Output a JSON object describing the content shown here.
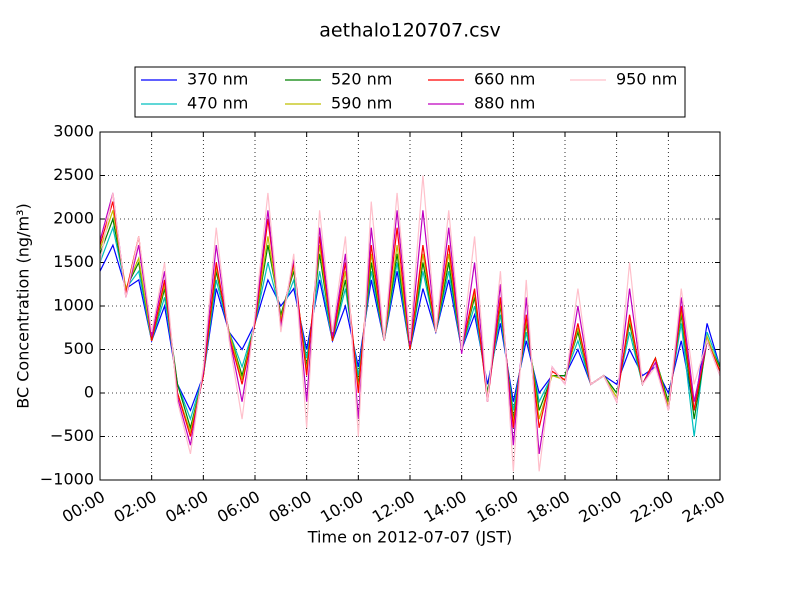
{
  "chart_data": {
    "type": "line",
    "title": "aethalo120707.csv",
    "x_label": "Time on 2012-07-07 (JST)",
    "y_label": "BC Concentration (ng/m³)",
    "x": [
      0,
      0.5,
      1,
      1.5,
      2,
      2.5,
      3,
      3.5,
      4,
      4.5,
      5,
      5.5,
      6,
      6.5,
      7,
      7.5,
      8,
      8.5,
      9,
      9.5,
      10,
      10.5,
      11,
      11.5,
      12,
      12.5,
      13,
      13.5,
      14,
      14.5,
      15,
      15.5,
      16,
      16.5,
      17,
      17.5,
      18,
      18.5,
      19,
      19.5,
      20,
      20.5,
      21,
      21.5,
      22,
      22.5,
      23,
      23.5,
      24
    ],
    "xlim": [
      0,
      24
    ],
    "xticks": [
      {
        "value": 0,
        "label": "00:00"
      },
      {
        "value": 2,
        "label": "02:00"
      },
      {
        "value": 4,
        "label": "04:00"
      },
      {
        "value": 6,
        "label": "06:00"
      },
      {
        "value": 8,
        "label": "08:00"
      },
      {
        "value": 10,
        "label": "10:00"
      },
      {
        "value": 12,
        "label": "12:00"
      },
      {
        "value": 14,
        "label": "14:00"
      },
      {
        "value": 16,
        "label": "16:00"
      },
      {
        "value": 18,
        "label": "18:00"
      },
      {
        "value": 20,
        "label": "20:00"
      },
      {
        "value": 22,
        "label": "22:00"
      },
      {
        "value": 24,
        "label": "24:00"
      }
    ],
    "ylim": [
      -1000,
      3000
    ],
    "yticks": [
      {
        "value": -1000,
        "label": "−1000"
      },
      {
        "value": -500,
        "label": "−500"
      },
      0,
      500,
      1000,
      1500,
      2000,
      2500,
      3000
    ],
    "grid": true,
    "legend": "top",
    "series": [
      {
        "name": "370 nm",
        "color": "#0000ff",
        "values": [
          1400,
          1700,
          1200,
          1300,
          600,
          1000,
          100,
          -200,
          200,
          1200,
          700,
          500,
          800,
          1300,
          1000,
          1200,
          500,
          1300,
          600,
          1000,
          300,
          1300,
          600,
          1400,
          500,
          1200,
          700,
          1300,
          500,
          900,
          100,
          800,
          -100,
          600,
          0,
          200,
          200,
          500,
          100,
          200,
          100,
          500,
          200,
          300,
          0,
          600,
          -200,
          800,
          300
        ]
      },
      {
        "name": "470 nm",
        "color": "#00bfbf",
        "values": [
          1500,
          1900,
          1200,
          1400,
          600,
          1100,
          100,
          -300,
          200,
          1300,
          700,
          300,
          800,
          1500,
          900,
          1300,
          400,
          1400,
          600,
          1200,
          200,
          1400,
          600,
          1500,
          500,
          1400,
          700,
          1400,
          500,
          1000,
          0,
          900,
          -200,
          700,
          -100,
          200,
          200,
          600,
          100,
          200,
          0,
          700,
          100,
          400,
          -100,
          800,
          -500,
          700,
          300
        ]
      },
      {
        "name": "520 nm",
        "color": "#008000",
        "values": [
          1600,
          2000,
          1200,
          1500,
          600,
          1200,
          100,
          -400,
          200,
          1400,
          700,
          200,
          800,
          1700,
          900,
          1400,
          300,
          1600,
          600,
          1300,
          100,
          1500,
          600,
          1600,
          500,
          1500,
          700,
          1500,
          500,
          1100,
          0,
          1000,
          -300,
          800,
          -200,
          200,
          200,
          700,
          100,
          200,
          0,
          800,
          100,
          400,
          -100,
          900,
          -300,
          600,
          300
        ]
      },
      {
        "name": "590 nm",
        "color": "#bfbf00",
        "values": [
          1650,
          2100,
          1200,
          1550,
          600,
          1250,
          0,
          -450,
          200,
          1450,
          700,
          150,
          800,
          1800,
          850,
          1450,
          250,
          1700,
          600,
          1400,
          50,
          1600,
          600,
          1700,
          500,
          1600,
          700,
          1600,
          500,
          1150,
          -50,
          1050,
          -350,
          850,
          -300,
          200,
          150,
          750,
          100,
          200,
          -50,
          850,
          100,
          400,
          -150,
          950,
          -200,
          650,
          250
        ]
      },
      {
        "name": "660 nm",
        "color": "#ff0000",
        "values": [
          1700,
          2200,
          1150,
          1800,
          600,
          1300,
          0,
          -500,
          200,
          1500,
          650,
          100,
          800,
          2000,
          800,
          1500,
          200,
          1800,
          600,
          1500,
          0,
          1700,
          600,
          1900,
          500,
          1700,
          700,
          1700,
          500,
          1200,
          -100,
          1100,
          -400,
          900,
          -400,
          250,
          150,
          800,
          100,
          200,
          -100,
          900,
          100,
          400,
          -200,
          1000,
          -200,
          600,
          250
        ]
      },
      {
        "name": "880 nm",
        "color": "#bf00bf",
        "values": [
          1750,
          2300,
          1100,
          1700,
          650,
          1400,
          -50,
          -600,
          250,
          1700,
          650,
          -100,
          850,
          2100,
          750,
          1550,
          -100,
          1900,
          650,
          1600,
          -300,
          1900,
          600,
          2100,
          550,
          2100,
          700,
          1900,
          450,
          1500,
          -100,
          1250,
          -600,
          1100,
          -700,
          300,
          100,
          1000,
          100,
          200,
          -100,
          1200,
          100,
          350,
          -200,
          1100,
          -100,
          600,
          200
        ]
      },
      {
        "name": "950 nm",
        "color": "#ffc0cb",
        "values": [
          1500,
          2300,
          1100,
          1800,
          700,
          1500,
          -100,
          -700,
          300,
          1900,
          600,
          -300,
          900,
          2300,
          700,
          1600,
          -400,
          2100,
          700,
          1800,
          -500,
          2200,
          600,
          2300,
          600,
          2500,
          700,
          2100,
          500,
          1800,
          -100,
          1400,
          -900,
          1300,
          -900,
          300,
          100,
          1200,
          100,
          200,
          -100,
          1500,
          100,
          300,
          -200,
          1200,
          100,
          600,
          200
        ]
      }
    ]
  }
}
